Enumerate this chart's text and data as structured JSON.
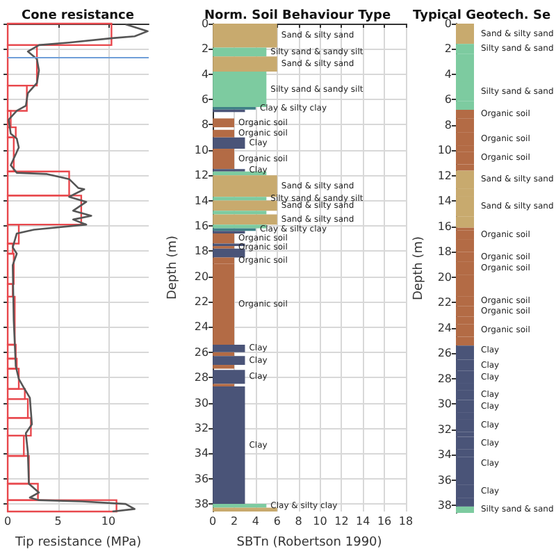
{
  "chart_data": [
    {
      "type": "line",
      "title": "Cone resistance",
      "xlabel": "Tip resistance (MPa)",
      "orientation": "horizontal",
      "xlim": [
        0,
        14
      ],
      "xticks": [
        0,
        5,
        10
      ],
      "ylim": [
        38.6,
        0
      ],
      "yticks": [
        0,
        2,
        4,
        6,
        8,
        10,
        12,
        14,
        16,
        18,
        20,
        22,
        24,
        26,
        28,
        30,
        32,
        34,
        36,
        38
      ],
      "tick_labels": "x",
      "grid": true,
      "series": [
        {
          "type": "histogram",
          "color": "#e8474c",
          "bins": [
            0,
            1.7,
            4.9,
            6.9,
            8.2,
            9.0,
            11.7,
            13.6,
            15.9,
            17.4,
            18.2,
            20.6,
            21.6,
            25.4,
            26.5,
            27.3,
            28.9,
            29.7,
            31.2,
            32.6,
            34.2,
            36.4,
            37.7,
            38.6
          ],
          "values": [
            10.3,
            2.9,
            1.9,
            0.3,
            0.8,
            0.6,
            6.1,
            7.3,
            1.1,
            0.5,
            0.6,
            0.5,
            0.7,
            0.8,
            0.9,
            1.1,
            1.7,
            2.0,
            2.3,
            1.6,
            2.1,
            3.0,
            10.8
          ]
        },
        {
          "color": "#555555",
          "x": [
            0.05,
            0.6,
            1.0,
            1.15,
            1.5,
            1.7,
            2.2,
            2.8,
            3.7,
            4.7,
            5.5,
            6.5,
            6.9,
            7.6,
            8.7,
            9.1,
            9.8,
            11.2,
            11.8,
            11.9,
            12.3,
            13.0,
            13.1,
            13.7,
            14.1,
            14.8,
            15.2,
            15.5,
            15.9,
            16.3,
            16.6,
            17.7,
            18.2,
            19.1,
            23.5,
            27.1,
            28.1,
            28.8,
            29.6,
            31.7,
            32.4,
            33.9,
            36.4,
            37.1,
            37.5,
            37.7,
            37.8,
            38.0,
            38.4,
            38.6
          ],
          "values": [
            11.7,
            13.9,
            12.6,
            10.4,
            6.1,
            3.1,
            2.0,
            2.9,
            3.1,
            2.9,
            2.0,
            1.8,
            0.9,
            0.1,
            0.3,
            0.9,
            1.1,
            0.3,
            0.9,
            3.9,
            6.1,
            7.0,
            7.6,
            6.1,
            7.8,
            6.5,
            8.3,
            6.5,
            7.8,
            2.6,
            0.9,
            0.5,
            0.9,
            0.5,
            0.6,
            0.8,
            1.1,
            1.6,
            2.2,
            2.4,
            1.8,
            2.0,
            2.1,
            3.1,
            2.2,
            3.1,
            7.4,
            11.7,
            12.6,
            10.4
          ]
        }
      ],
      "ref_lines": [
        {
          "axis": "y",
          "value": 2.7,
          "color": "#6f9fd8"
        }
      ]
    },
    {
      "type": "histogram",
      "title": "Norm. Soil Behaviour Type",
      "xlabel": "SBTn (Robertson 1990)",
      "ylabel": "Depth (m)",
      "orientation": "horizontal",
      "xlim": [
        0,
        18
      ],
      "xticks": [
        0,
        2,
        4,
        6,
        8,
        10,
        12,
        14,
        16,
        18
      ],
      "ylim": [
        38.6,
        0
      ],
      "yticks": [
        0,
        2,
        4,
        6,
        8,
        10,
        12,
        14,
        16,
        18,
        20,
        22,
        24,
        26,
        28,
        30,
        32,
        34,
        36,
        38
      ],
      "grid": true,
      "bins": [
        0,
        1.9,
        2.6,
        3.8,
        6.6,
        6.8,
        7.0,
        7.5,
        8.2,
        8.4,
        9.0,
        9.9,
        11.5,
        11.7,
        12.0,
        13.7,
        14.0,
        14.8,
        15.1,
        15.9,
        16.2,
        16.4,
        16.6,
        17.4,
        17.6,
        17.8,
        18.5,
        19.0,
        25.4,
        26.0,
        26.3,
        27.0,
        27.3,
        27.4,
        28.5,
        28.7,
        38.0,
        38.3,
        38.6
      ],
      "values": [
        6,
        5,
        6,
        5,
        4,
        3,
        null,
        2,
        null,
        2,
        3,
        2,
        3,
        5,
        6,
        5,
        6,
        5,
        6,
        5,
        4,
        3,
        2,
        3,
        2,
        3,
        2,
        2,
        3,
        2,
        3,
        2,
        null,
        3,
        2,
        3,
        5,
        6
      ],
      "colors": [
        "#c8aa6e",
        "#7dcba0",
        "#c8aa6e",
        "#7dcba0",
        "#3f7f86",
        "#4a5478",
        null,
        "#b36b45",
        null,
        "#b36b45",
        "#4a5478",
        "#b36b45",
        "#4a5478",
        "#7dcba0",
        "#c8aa6e",
        "#7dcba0",
        "#c8aa6e",
        "#7dcba0",
        "#c8aa6e",
        "#7dcba0",
        "#3f7f86",
        "#4a5478",
        "#b36b45",
        "#4a5478",
        "#b36b45",
        "#4a5478",
        "#b36b45",
        "#b36b45",
        "#4a5478",
        "#b36b45",
        "#4a5478",
        "#b36b45",
        null,
        "#4a5478",
        "#b36b45",
        "#4a5478",
        "#7dcba0",
        "#c8aa6e"
      ],
      "value_labels": [
        "Sand & silty sand",
        "Silty sand & sandy silt",
        "Sand & silty sand",
        "Silty sand & sandy silt",
        "Clay & silty clay",
        null,
        null,
        "Organic soil",
        null,
        "Organic soil",
        "Clay",
        "Organic soil",
        "Clay",
        null,
        "Sand & silty sand",
        "Silty sand & sandy silt",
        "Sand & silty sand",
        null,
        "Sand & silty sand",
        null,
        "Clay & silty clay",
        null,
        "Organic soil",
        null,
        "Organic soil",
        null,
        "Organic soil",
        "Organic soil",
        "Clay",
        null,
        "Clay",
        null,
        null,
        "Clay",
        null,
        "Clay",
        "Clay & silty clay",
        null
      ]
    },
    {
      "type": "bar",
      "title": "Typical Geotech. Se",
      "ylabel": "Depth (m)",
      "stacked": true,
      "categories": [
        null
      ],
      "ylim": [
        38.6,
        0
      ],
      "yticks": [
        0,
        2,
        4,
        6,
        8,
        10,
        12,
        14,
        16,
        18,
        20,
        22,
        24,
        26,
        28,
        30,
        32,
        34,
        36,
        38
      ],
      "tick_labels": "y",
      "series": [
        {
          "name": "Sand & silty sand",
          "color": "#c8aa6e",
          "values": [
            1.6
          ]
        },
        {
          "name": "Silty sand & sand",
          "color": "#7dcba0",
          "values": [
            0.8
          ]
        },
        {
          "color": "#7dcba0",
          "values": [
            2.2
          ]
        },
        {
          "name": "Silty sand & sand",
          "color": "#7dcba0",
          "values": [
            1.5
          ]
        },
        {
          "color": "#7dcba0",
          "values": [
            0.7
          ]
        },
        {
          "name": "Organic soil",
          "color": "#b36b45",
          "values": [
            0.7
          ]
        },
        {
          "color": "#b36b45",
          "values": [
            1.1
          ]
        },
        {
          "name": "Organic soil",
          "color": "#b36b45",
          "values": [
            1.0
          ]
        },
        {
          "color": "#b36b45",
          "values": [
            0.5
          ]
        },
        {
          "name": "Organic soil",
          "color": "#b36b45",
          "values": [
            1.0
          ]
        },
        {
          "color": "#b36b45",
          "values": [
            0.5
          ]
        },
        {
          "name": "Sand & silty sand",
          "color": "#c8aa6e",
          "values": [
            1.4
          ]
        },
        {
          "color": "#c8aa6e",
          "values": [
            0.6
          ]
        },
        {
          "name": "Sand & silty sand",
          "color": "#c8aa6e",
          "values": [
            1.6
          ]
        },
        {
          "color": "#c8aa6e",
          "values": [
            0.9
          ]
        },
        {
          "color": "#b36b45",
          "values": [
            0.2
          ]
        },
        {
          "name": "Organic soil",
          "color": "#b36b45",
          "values": [
            0.7
          ]
        },
        {
          "color": "#b36b45",
          "values": [
            1.0
          ]
        },
        {
          "name": "Organic soil",
          "color": "#b36b45",
          "values": [
            0.8
          ]
        },
        {
          "name": "Organic soil",
          "color": "#b36b45",
          "values": [
            1.0
          ]
        },
        {
          "color": "#b36b45",
          "values": [
            1.7
          ]
        },
        {
          "name": "Organic soil",
          "color": "#b36b45",
          "values": [
            0.8
          ]
        },
        {
          "name": "Organic soil",
          "color": "#b36b45",
          "values": [
            0.8
          ]
        },
        {
          "color": "#b36b45",
          "values": [
            0.6
          ]
        },
        {
          "name": "Organic soil",
          "color": "#b36b45",
          "values": [
            1.0
          ]
        },
        {
          "color": "#b36b45",
          "values": [
            0.7
          ]
        },
        {
          "name": "Clay",
          "color": "#4a5478",
          "values": [
            0.7
          ]
        },
        {
          "color": "#4a5478",
          "values": [
            0.4
          ]
        },
        {
          "name": "Clay",
          "color": "#4a5478",
          "values": [
            0.9
          ]
        },
        {
          "name": "Clay",
          "color": "#4a5478",
          "values": [
            1.0
          ]
        },
        {
          "color": "#4a5478",
          "values": [
            0.5
          ]
        },
        {
          "name": "Clay",
          "color": "#4a5478",
          "values": [
            0.8
          ]
        },
        {
          "name": "Clay",
          "color": "#4a5478",
          "values": [
            1.0
          ]
        },
        {
          "color": "#4a5478",
          "values": [
            0.5
          ]
        },
        {
          "name": "Clay",
          "color": "#4a5478",
          "values": [
            1.0
          ]
        },
        {
          "color": "#4a5478",
          "values": [
            0.4
          ]
        },
        {
          "name": "Clay",
          "color": "#4a5478",
          "values": [
            1.0
          ]
        },
        {
          "color": "#4a5478",
          "values": [
            0.6
          ]
        },
        {
          "name": "Clay",
          "color": "#4a5478",
          "values": [
            1.0
          ]
        },
        {
          "color": "#4a5478",
          "values": [
            1.2
          ]
        },
        {
          "name": "Clay",
          "color": "#4a5478",
          "values": [
            1.0
          ]
        },
        {
          "color": "#4a5478",
          "values": [
            0.7
          ]
        },
        {
          "name": "Silty sand & sand",
          "color": "#7dcba0",
          "values": [
            0.5
          ]
        }
      ]
    }
  ]
}
